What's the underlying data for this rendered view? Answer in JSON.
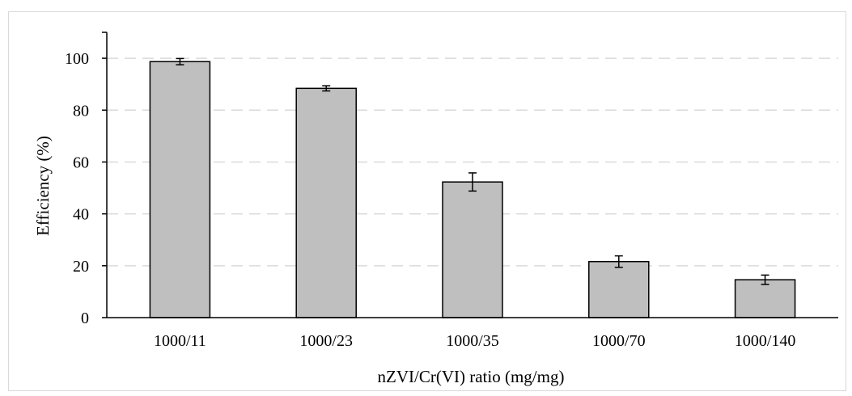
{
  "chart_data": {
    "type": "bar",
    "categories": [
      "1000/11",
      "1000/23",
      "1000/35",
      "1000/70",
      "1000/140"
    ],
    "values": [
      98.7,
      88.4,
      52.3,
      21.6,
      14.6
    ],
    "error_bars": [
      1.2,
      1.0,
      3.5,
      2.2,
      1.8
    ],
    "xlabel": "nZVI/Cr(VI)  ratio (mg/mg)",
    "ylabel": "Efficiency (%)",
    "ylim": [
      0,
      110
    ],
    "yticks": [
      0,
      20,
      40,
      60,
      80,
      100
    ],
    "grid": true,
    "legend": "none",
    "colors": {
      "bar_fill": "#bfbfbf",
      "bar_stroke": "#000000",
      "grid": "#d9d9d9",
      "axis": "#000000"
    }
  }
}
